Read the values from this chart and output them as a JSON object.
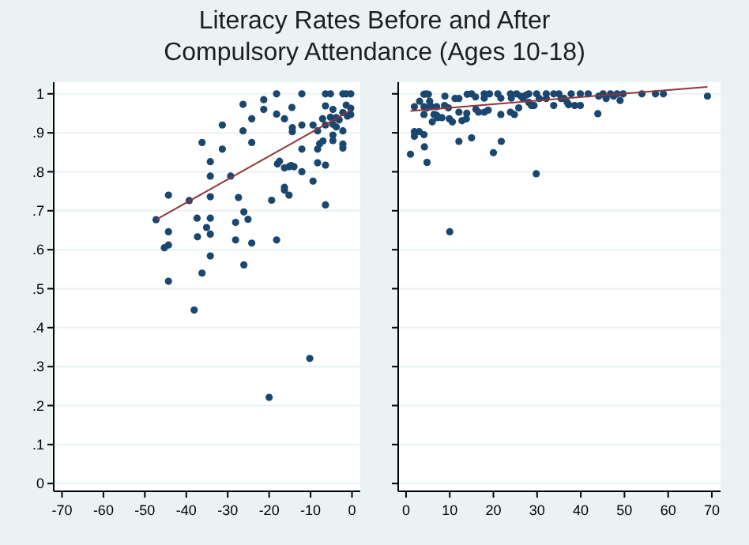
{
  "chart_data": [
    {
      "type": "scatter",
      "title": "Literacy Rates Before and After\nCompulsory Attendance (Ages 10-18)",
      "xlim": [
        -72,
        2
      ],
      "xticks": [
        -70,
        -60,
        -50,
        -40,
        -30,
        -20,
        -10,
        0
      ],
      "ylim": [
        -0.02,
        1.03
      ],
      "yticks": [
        0,
        {
          "value": 0.1,
          "label": ".1"
        },
        {
          "value": 0.2,
          "label": ".2"
        },
        {
          "value": 0.3,
          "label": ".3"
        },
        {
          "value": 0.4,
          "label": ".4"
        },
        {
          "value": 0.5,
          "label": ".5"
        },
        {
          "value": 0.6,
          "label": ".6"
        },
        {
          "value": 0.7,
          "label": ".7"
        },
        {
          "value": 0.8,
          "label": ".8"
        },
        {
          "value": 0.9,
          "label": ".9"
        },
        1
      ],
      "grid": "y",
      "series": [
        {
          "type": "scatter",
          "marker": "circle",
          "color": "#1a476f",
          "x": [
            -47.3,
            -44.3,
            -44.3,
            -45.3,
            -44.3,
            -44.3,
            -38.1,
            -39.3,
            -36.2,
            -36.2,
            -37.4,
            -37.3,
            -35.1,
            -34.2,
            -34.2,
            -34.2,
            -34.2,
            -34.2,
            -34.2,
            -31.3,
            -31.3,
            -29.3,
            -28.1,
            -28.1,
            -27.4,
            -26.1,
            -26.1,
            -25.1,
            -26.3,
            -26.3,
            -24.2,
            -24.2,
            -24.2,
            -21.3,
            -21.3,
            -19.4,
            -18.2,
            -18.2,
            -18.2,
            -17.5,
            -18.0,
            -16.3,
            -16.3,
            -16.3,
            -16.3,
            -15.2,
            -14.5,
            -14.4,
            -14.4,
            -14.7,
            -15.2,
            -14.0,
            -12.1,
            -12.1,
            -12.1,
            -12.1,
            -9.4,
            -9.4,
            -8.3,
            -8.3,
            -8.3,
            -7.8,
            -7.0,
            -7.1,
            -6.4,
            -6.4,
            -6.4,
            -6.4,
            -6.4,
            -5.2,
            -5.2,
            -4.6,
            -4.6,
            -4.6,
            -4.6,
            -3.8,
            -3.8,
            -3.1,
            -2.2,
            -2.2,
            -2.2,
            -2.2,
            -2.2,
            -1.4,
            -1.4,
            -0.3,
            -0.3,
            -0.3,
            -1.1,
            -20.0,
            -10.2
          ],
          "values": [
            0.677,
            0.74,
            0.646,
            0.605,
            0.612,
            0.519,
            0.445,
            0.726,
            0.875,
            0.54,
            0.681,
            0.633,
            0.657,
            0.826,
            0.789,
            0.736,
            0.681,
            0.64,
            0.584,
            0.92,
            0.858,
            0.789,
            0.67,
            0.625,
            0.734,
            0.697,
            0.561,
            0.678,
            0.973,
            0.905,
            0.936,
            0.875,
            0.617,
            0.985,
            0.96,
            0.727,
            1.0,
            0.948,
            0.625,
            0.827,
            0.82,
            0.936,
            0.81,
            0.76,
            0.753,
            0.74,
            0.965,
            0.913,
            0.903,
            0.816,
            0.813,
            0.813,
            1.0,
            0.92,
            0.858,
            0.8,
            0.92,
            0.776,
            0.858,
            0.823,
            0.905,
            0.872,
            0.879,
            0.936,
            1.0,
            0.969,
            0.92,
            0.817,
            0.715,
            1.0,
            0.94,
            0.96,
            0.922,
            0.894,
            0.88,
            0.939,
            0.915,
            0.933,
            1.0,
            0.952,
            0.905,
            0.871,
            0.861,
            1.0,
            0.971,
            1.0,
            0.963,
            0.947,
            0.943,
            0.221,
            0.321
          ]
        },
        {
          "type": "line",
          "marker": "none",
          "color": "#90353b",
          "x": [
            -47.3,
            -0.3
          ],
          "values": [
            0.677,
            0.958
          ]
        }
      ]
    },
    {
      "type": "scatter",
      "xlim": [
        -1.8,
        72
      ],
      "xticks": [
        0,
        10,
        20,
        30,
        40,
        50,
        60,
        70
      ],
      "ylim": [
        -0.02,
        1.03
      ],
      "yticks": [
        {
          "value": 0,
          "label": null
        },
        {
          "value": 0.1,
          "label": null
        },
        {
          "value": 0.2,
          "label": null
        },
        {
          "value": 0.3,
          "label": null
        },
        {
          "value": 0.4,
          "label": null
        },
        {
          "value": 0.5,
          "label": null
        },
        {
          "value": 0.6,
          "label": null
        },
        {
          "value": 0.7,
          "label": null
        },
        {
          "value": 0.8,
          "label": null
        },
        {
          "value": 0.9,
          "label": null
        },
        {
          "value": 1,
          "label": null
        }
      ],
      "grid": "y",
      "tick_labels": "x",
      "series": [
        {
          "type": "scatter",
          "marker": "circle",
          "color": "#1a476f",
          "x": [
            1.0,
            1.9,
            1.9,
            1.9,
            3.0,
            4.1,
            4.2,
            4.8,
            3.1,
            4.1,
            4.6,
            5.1,
            4.1,
            4.1,
            4.8,
            5.4,
            5.8,
            6.0,
            6.4,
            7.0,
            7.0,
            7.2,
            8.2,
            8.9,
            8.8,
            9.7,
            10.0,
            9.9,
            10.6,
            11.2,
            12.1,
            12.1,
            12.1,
            12.8,
            13.8,
            13.9,
            14.0,
            15.0,
            15.0,
            15.9,
            16.0,
            16.6,
            17.9,
            17.9,
            17.9,
            18.8,
            19.1,
            20.0,
            21.0,
            21.7,
            21.7,
            21.8,
            23.9,
            23.9,
            24.1,
            24.8,
            25.3,
            25.8,
            26.3,
            26.8,
            27.5,
            28.1,
            28.1,
            28.7,
            29.3,
            29.8,
            29.9,
            30.5,
            32.1,
            32.1,
            33.8,
            33.8,
            35.0,
            35.5,
            36.2,
            36.9,
            37.2,
            37.8,
            38.6,
            39.9,
            39.9,
            41.7,
            43.9,
            44.1,
            45.1,
            45.8,
            46.8,
            47.5,
            48.3,
            49.0,
            49.7,
            54.0,
            57.1,
            58.9,
            69.0
          ],
          "values": [
            0.845,
            0.891,
            0.903,
            0.967,
            0.903,
            0.895,
            0.864,
            0.824,
            0.981,
            0.999,
            1.0,
            0.999,
            0.947,
            0.967,
            0.964,
            0.981,
            0.967,
            0.928,
            0.947,
            0.967,
            0.945,
            0.939,
            0.939,
            0.994,
            0.97,
            0.964,
            0.646,
            0.936,
            0.928,
            0.988,
            0.988,
            0.953,
            0.878,
            0.931,
            0.936,
            0.95,
            0.999,
            1.0,
            0.887,
            0.992,
            0.96,
            0.953,
            1.0,
            0.953,
            0.989,
            0.958,
            1.0,
            0.849,
            1.0,
            0.989,
            0.947,
            0.878,
            1.0,
            0.953,
            0.989,
            0.947,
            1.0,
            0.964,
            0.994,
            0.988,
            0.997,
            1.0,
            0.978,
            0.97,
            0.97,
            0.795,
            1.0,
            0.988,
            1.0,
            0.988,
            1.0,
            0.97,
            1.0,
            0.988,
            0.988,
            0.978,
            0.972,
            1.0,
            0.97,
            0.97,
            1.0,
            1.0,
            0.949,
            0.994,
            1.0,
            0.988,
            1.0,
            0.994,
            1.0,
            0.983,
            1.0,
            1.0,
            1.0,
            1.0,
            0.994
          ]
        },
        {
          "type": "line",
          "marker": "none",
          "color": "#90353b",
          "x": [
            1.0,
            69.0
          ],
          "values": [
            0.956,
            1.018
          ]
        }
      ]
    }
  ]
}
